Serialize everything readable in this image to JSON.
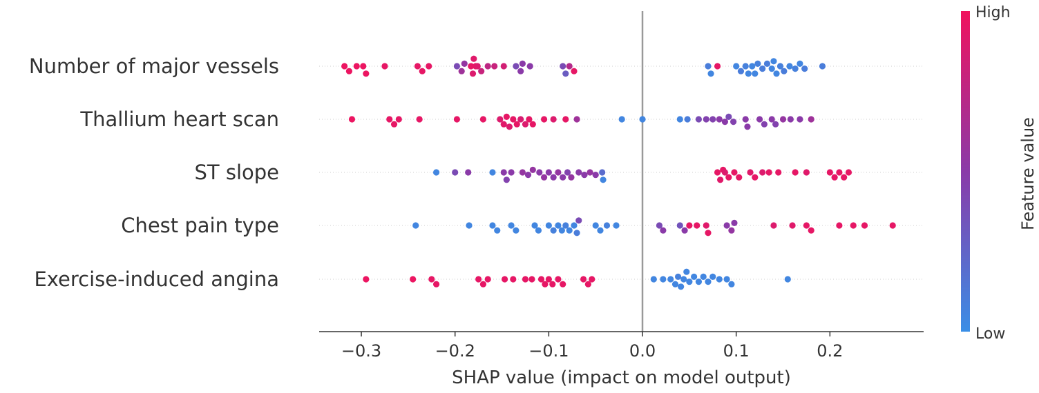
{
  "chart_data": {
    "type": "scatter",
    "subtype": "shap-beeswarm",
    "title": "",
    "xlabel": "SHAP value (impact on model output)",
    "ylabel": "",
    "xlim": [
      -0.345,
      0.3
    ],
    "xticks": [
      -0.3,
      -0.2,
      -0.1,
      0.0,
      0.1,
      0.2
    ],
    "xtick_labels": [
      "−0.3",
      "−0.2",
      "−0.1",
      "0.0",
      "0.1",
      "0.2"
    ],
    "colorbar": {
      "label": "Feature value",
      "high_label": "High",
      "low_label": "Low",
      "low_color": "#3a8ee6",
      "mid_color": "#8a3aa8",
      "high_color": "#f0135e"
    },
    "zero_line_color": "#999999",
    "features": [
      {
        "name": "Number of major vessels",
        "points": [
          [
            -0.318,
            0.98
          ],
          [
            -0.313,
            0.98
          ],
          [
            -0.305,
            0.98
          ],
          [
            -0.298,
            0.98
          ],
          [
            -0.295,
            0.98
          ],
          [
            -0.275,
            0.95
          ],
          [
            -0.24,
            0.95
          ],
          [
            -0.235,
            0.95
          ],
          [
            -0.228,
            0.95
          ],
          [
            -0.198,
            0.4
          ],
          [
            -0.193,
            0.6
          ],
          [
            -0.19,
            0.55
          ],
          [
            -0.183,
            0.95
          ],
          [
            -0.181,
            0.9
          ],
          [
            -0.18,
            0.92
          ],
          [
            -0.178,
            0.95
          ],
          [
            -0.176,
            0.9
          ],
          [
            -0.172,
            0.8
          ],
          [
            -0.165,
            0.75
          ],
          [
            -0.158,
            0.8
          ],
          [
            -0.148,
            0.85
          ],
          [
            -0.135,
            0.4
          ],
          [
            -0.13,
            0.5
          ],
          [
            -0.128,
            0.5
          ],
          [
            -0.12,
            0.5
          ],
          [
            -0.085,
            0.4
          ],
          [
            -0.082,
            0.3
          ],
          [
            -0.078,
            0.7
          ],
          [
            -0.073,
            0.95
          ],
          [
            0.07,
            0.1
          ],
          [
            0.073,
            0.05
          ],
          [
            0.08,
            0.95
          ],
          [
            0.1,
            0.05
          ],
          [
            0.105,
            0.1
          ],
          [
            0.11,
            0.08
          ],
          [
            0.113,
            0.05
          ],
          [
            0.117,
            0.05
          ],
          [
            0.12,
            0.05
          ],
          [
            0.123,
            0.08
          ],
          [
            0.128,
            0.1
          ],
          [
            0.133,
            0.1
          ],
          [
            0.138,
            0.05
          ],
          [
            0.14,
            0.05
          ],
          [
            0.143,
            0.05
          ],
          [
            0.147,
            0.08
          ],
          [
            0.151,
            0.1
          ],
          [
            0.157,
            0.05
          ],
          [
            0.163,
            0.08
          ],
          [
            0.168,
            0.05
          ],
          [
            0.173,
            0.1
          ],
          [
            0.192,
            0.1
          ]
        ]
      },
      {
        "name": "Thallium heart scan",
        "points": [
          [
            -0.31,
            0.98
          ],
          [
            -0.27,
            0.95
          ],
          [
            -0.265,
            0.95
          ],
          [
            -0.26,
            0.95
          ],
          [
            -0.238,
            0.95
          ],
          [
            -0.198,
            0.95
          ],
          [
            -0.17,
            0.95
          ],
          [
            -0.152,
            0.9
          ],
          [
            -0.148,
            0.92
          ],
          [
            -0.145,
            0.95
          ],
          [
            -0.142,
            0.9
          ],
          [
            -0.138,
            0.95
          ],
          [
            -0.134,
            0.95
          ],
          [
            -0.13,
            0.88
          ],
          [
            -0.125,
            0.9
          ],
          [
            -0.121,
            0.95
          ],
          [
            -0.117,
            0.95
          ],
          [
            -0.105,
            0.95
          ],
          [
            -0.095,
            0.9
          ],
          [
            -0.082,
            0.95
          ],
          [
            -0.07,
            0.6
          ],
          [
            -0.022,
            0.05
          ],
          [
            0.0,
            0.05
          ],
          [
            0.04,
            0.05
          ],
          [
            0.048,
            0.1
          ],
          [
            0.06,
            0.4
          ],
          [
            0.068,
            0.45
          ],
          [
            0.075,
            0.45
          ],
          [
            0.082,
            0.5
          ],
          [
            0.088,
            0.5
          ],
          [
            0.092,
            0.4
          ],
          [
            0.097,
            0.45
          ],
          [
            0.11,
            0.5
          ],
          [
            0.112,
            0.5
          ],
          [
            0.125,
            0.5
          ],
          [
            0.13,
            0.45
          ],
          [
            0.138,
            0.5
          ],
          [
            0.142,
            0.45
          ],
          [
            0.15,
            0.55
          ],
          [
            0.158,
            0.5
          ],
          [
            0.168,
            0.5
          ],
          [
            0.18,
            0.6
          ]
        ]
      },
      {
        "name": "ST slope",
        "points": [
          [
            -0.22,
            0.05
          ],
          [
            -0.2,
            0.4
          ],
          [
            -0.186,
            0.5
          ],
          [
            -0.16,
            0.05
          ],
          [
            -0.148,
            0.5
          ],
          [
            -0.145,
            0.45
          ],
          [
            -0.14,
            0.5
          ],
          [
            -0.128,
            0.55
          ],
          [
            -0.122,
            0.5
          ],
          [
            -0.117,
            0.55
          ],
          [
            -0.11,
            0.5
          ],
          [
            -0.105,
            0.55
          ],
          [
            -0.1,
            0.5
          ],
          [
            -0.095,
            0.5
          ],
          [
            -0.09,
            0.55
          ],
          [
            -0.085,
            0.5
          ],
          [
            -0.08,
            0.45
          ],
          [
            -0.076,
            0.55
          ],
          [
            -0.068,
            0.5
          ],
          [
            -0.062,
            0.5
          ],
          [
            -0.056,
            0.55
          ],
          [
            -0.05,
            0.5
          ],
          [
            -0.043,
            0.2
          ],
          [
            -0.042,
            0.05
          ],
          [
            0.08,
            0.95
          ],
          [
            0.083,
            0.92
          ],
          [
            0.086,
            0.95
          ],
          [
            0.088,
            0.9
          ],
          [
            0.092,
            0.95
          ],
          [
            0.098,
            0.95
          ],
          [
            0.103,
            0.95
          ],
          [
            0.115,
            0.92
          ],
          [
            0.12,
            0.95
          ],
          [
            0.128,
            0.9
          ],
          [
            0.135,
            0.95
          ],
          [
            0.145,
            0.95
          ],
          [
            0.163,
            0.95
          ],
          [
            0.175,
            0.92
          ],
          [
            0.2,
            0.95
          ],
          [
            0.205,
            0.95
          ],
          [
            0.21,
            0.95
          ],
          [
            0.215,
            0.95
          ],
          [
            0.22,
            0.95
          ]
        ]
      },
      {
        "name": "Chest pain type",
        "points": [
          [
            -0.242,
            0.05
          ],
          [
            -0.185,
            0.05
          ],
          [
            -0.16,
            0.05
          ],
          [
            -0.155,
            0.05
          ],
          [
            -0.14,
            0.05
          ],
          [
            -0.135,
            0.05
          ],
          [
            -0.115,
            0.05
          ],
          [
            -0.111,
            0.05
          ],
          [
            -0.1,
            0.05
          ],
          [
            -0.095,
            0.08
          ],
          [
            -0.09,
            0.05
          ],
          [
            -0.086,
            0.05
          ],
          [
            -0.082,
            0.08
          ],
          [
            -0.078,
            0.05
          ],
          [
            -0.073,
            0.05
          ],
          [
            -0.07,
            0.1
          ],
          [
            -0.068,
            0.4
          ],
          [
            -0.05,
            0.05
          ],
          [
            -0.045,
            0.05
          ],
          [
            -0.038,
            0.08
          ],
          [
            -0.028,
            0.05
          ],
          [
            0.018,
            0.4
          ],
          [
            0.022,
            0.5
          ],
          [
            0.04,
            0.35
          ],
          [
            0.045,
            0.5
          ],
          [
            0.05,
            0.95
          ],
          [
            0.058,
            0.95
          ],
          [
            0.068,
            0.92
          ],
          [
            0.07,
            0.95
          ],
          [
            0.09,
            0.5
          ],
          [
            0.095,
            0.55
          ],
          [
            0.098,
            0.5
          ],
          [
            0.14,
            0.9
          ],
          [
            0.16,
            0.92
          ],
          [
            0.175,
            0.95
          ],
          [
            0.18,
            0.95
          ],
          [
            0.21,
            0.95
          ],
          [
            0.225,
            0.95
          ],
          [
            0.237,
            0.95
          ],
          [
            0.267,
            0.95
          ]
        ]
      },
      {
        "name": "Exercise-induced angina",
        "points": [
          [
            -0.295,
            0.98
          ],
          [
            -0.245,
            0.98
          ],
          [
            -0.225,
            0.95
          ],
          [
            -0.22,
            0.95
          ],
          [
            -0.175,
            0.95
          ],
          [
            -0.17,
            0.95
          ],
          [
            -0.165,
            0.95
          ],
          [
            -0.147,
            0.95
          ],
          [
            -0.138,
            0.95
          ],
          [
            -0.125,
            0.95
          ],
          [
            -0.118,
            0.95
          ],
          [
            -0.108,
            0.95
          ],
          [
            -0.104,
            0.95
          ],
          [
            -0.1,
            0.95
          ],
          [
            -0.096,
            0.95
          ],
          [
            -0.09,
            0.95
          ],
          [
            -0.085,
            0.95
          ],
          [
            -0.063,
            0.95
          ],
          [
            -0.058,
            0.95
          ],
          [
            -0.054,
            0.95
          ],
          [
            0.012,
            0.05
          ],
          [
            0.022,
            0.05
          ],
          [
            0.03,
            0.05
          ],
          [
            0.035,
            0.05
          ],
          [
            0.038,
            0.08
          ],
          [
            0.041,
            0.05
          ],
          [
            0.044,
            0.05
          ],
          [
            0.047,
            0.05
          ],
          [
            0.05,
            0.05
          ],
          [
            0.055,
            0.05
          ],
          [
            0.06,
            0.05
          ],
          [
            0.065,
            0.05
          ],
          [
            0.07,
            0.05
          ],
          [
            0.075,
            0.05
          ],
          [
            0.082,
            0.05
          ],
          [
            0.09,
            0.05
          ],
          [
            0.095,
            0.05
          ],
          [
            0.155,
            0.05
          ]
        ]
      }
    ]
  }
}
